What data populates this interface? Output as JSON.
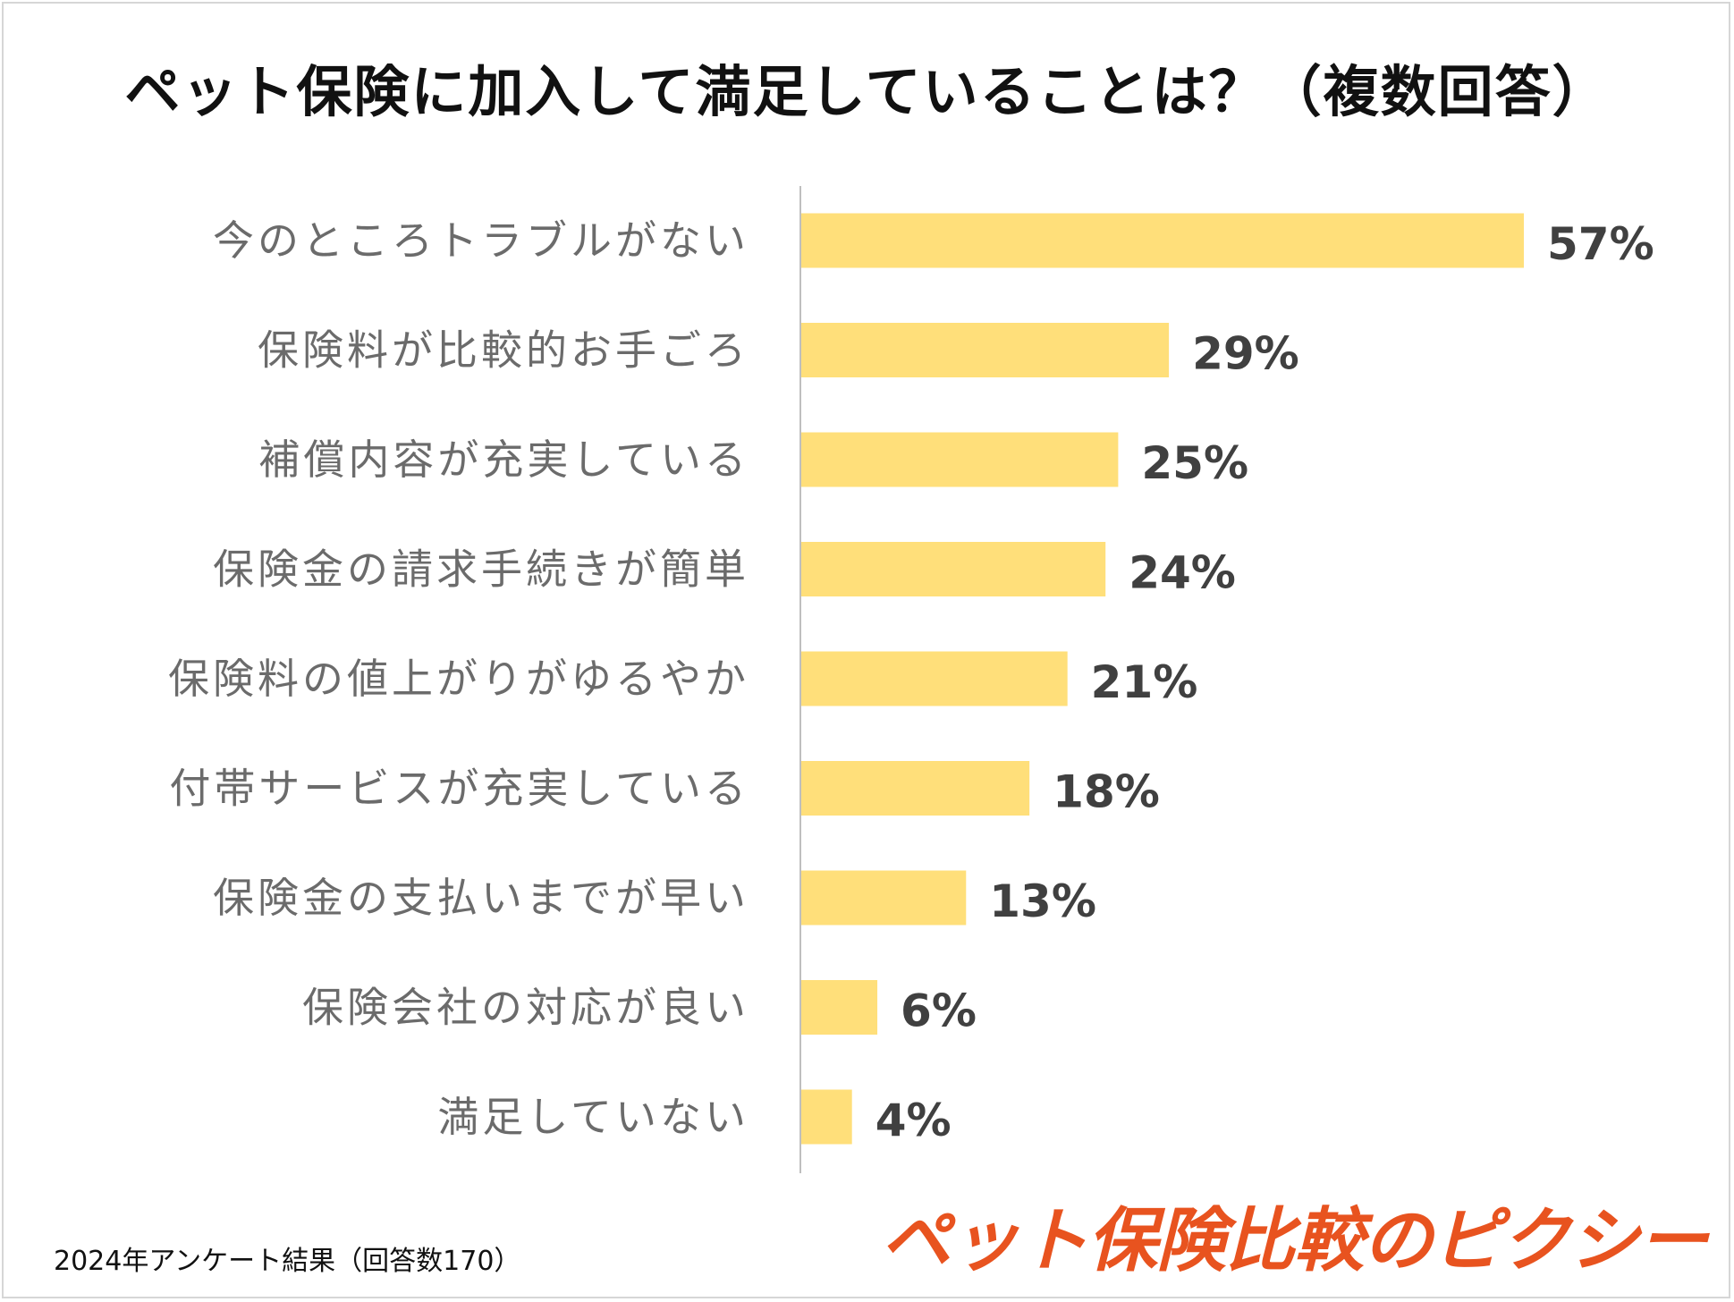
{
  "title": "ペット保険に加入して満足していることは？（複数回答）",
  "footnote": "2024年アンケート結果（回答数170）",
  "brand": "ペット保険比較のピクシー",
  "colors": {
    "bar": "#FFDF7A",
    "axis": "#BFBFBF",
    "brand": "#E8531F"
  },
  "chart_data": {
    "type": "bar",
    "orientation": "horizontal",
    "title": "ペット保険に加入して満足していることは？（複数回答）",
    "xlabel": "",
    "ylabel": "",
    "unit": "%",
    "xlim": [
      0,
      57
    ],
    "categories": [
      "今のところトラブルがない",
      "保険料が比較的お手ごろ",
      "補償内容が充実している",
      "保険金の請求手続きが簡単",
      "保険料の値上がりがゆるやか",
      "付帯サービスが充実している",
      "保険金の支払いまでが早い",
      "保険会社の対応が良い",
      "満足していない"
    ],
    "values": [
      57,
      29,
      25,
      24,
      21,
      18,
      13,
      6,
      4
    ],
    "value_labels": [
      "57%",
      "29%",
      "25%",
      "24%",
      "21%",
      "18%",
      "13%",
      "6%",
      "4%"
    ],
    "grid": false,
    "legend": "none"
  }
}
